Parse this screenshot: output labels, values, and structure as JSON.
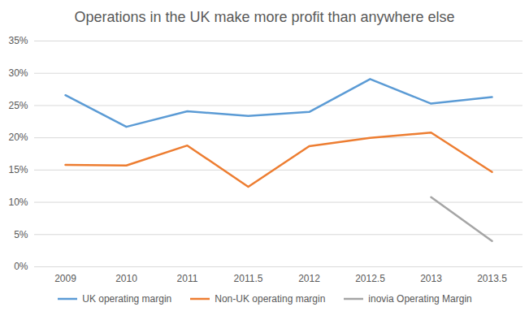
{
  "chart_data": {
    "type": "line",
    "title": "Operations in the UK make more profit than anywhere else",
    "categories": [
      "2009",
      "2010",
      "2011",
      "2011.5",
      "2012",
      "2012.5",
      "2013",
      "2013.5"
    ],
    "series": [
      {
        "name": "UK operating margin",
        "color": "#5b9bd5",
        "values": [
          26.6,
          21.7,
          24.1,
          23.4,
          24.0,
          29.1,
          25.3,
          26.3
        ]
      },
      {
        "name": "Non-UK operating margin",
        "color": "#ed7d31",
        "values": [
          15.8,
          15.7,
          18.8,
          12.4,
          18.7,
          20.0,
          20.8,
          14.7
        ]
      },
      {
        "name": "inovia Operating Margin",
        "color": "#a5a5a5",
        "values": [
          null,
          null,
          null,
          null,
          null,
          null,
          10.8,
          4.0
        ]
      }
    ],
    "ylim": [
      0,
      35
    ],
    "yticks": [
      {
        "value": 0,
        "label": "0%"
      },
      {
        "value": 5,
        "label": "5%"
      },
      {
        "value": 10,
        "label": "10%"
      },
      {
        "value": 15,
        "label": "15%"
      },
      {
        "value": 20,
        "label": "20%"
      },
      {
        "value": 25,
        "label": "25%"
      },
      {
        "value": 30,
        "label": "30%"
      },
      {
        "value": 35,
        "label": "35%"
      }
    ],
    "grid": true,
    "legend": "bottom"
  }
}
